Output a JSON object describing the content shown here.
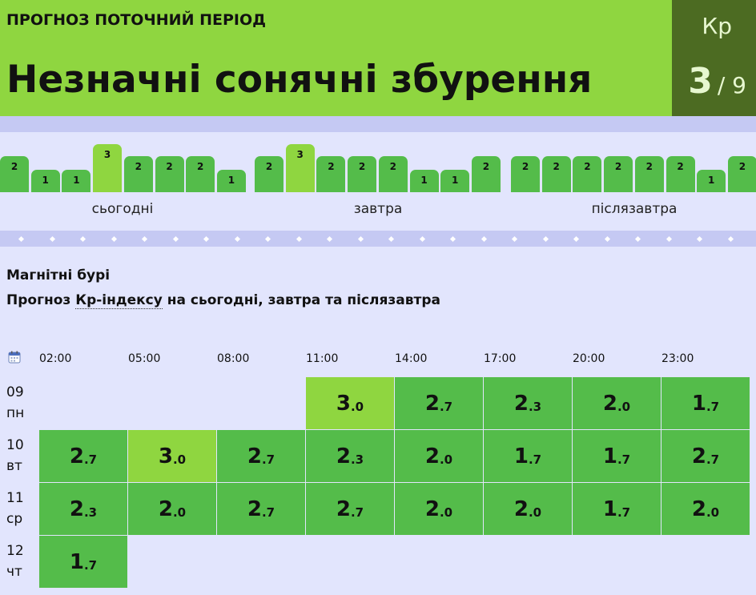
{
  "header": {
    "period_label": "ПРОГНОЗ ПОТОЧНИЙ ПЕРІОД",
    "headline": "Незначні сонячні збурення",
    "kp_label": "Кр",
    "kp_value": "3",
    "kp_max": "/ 9"
  },
  "colors": {
    "low": "#54bc4a",
    "mid": "#8fd640",
    "header_dark": "#4c6b22",
    "bg": "#e2e5fd",
    "band": "#c5c9f3"
  },
  "forecast_bars": [
    {
      "day": "сьогодні",
      "values": [
        "2",
        "1",
        "1",
        "3",
        "2",
        "2",
        "2",
        "1"
      ]
    },
    {
      "day": "завтра",
      "values": [
        "2",
        "3",
        "2",
        "2",
        "2",
        "1",
        "1",
        "2"
      ]
    },
    {
      "day": "післязавтра",
      "values": [
        "2",
        "2",
        "2",
        "2",
        "2",
        "2",
        "1",
        "2"
      ]
    }
  ],
  "section": {
    "title": "Магнітні бурі",
    "subtitle_prefix": "Прогноз ",
    "subtitle_abbr": "Кр-індексу",
    "subtitle_suffix": " на сьогодні, завтра та післязавтра"
  },
  "calendar_icon": "calendar-icon",
  "hours": [
    "02:00",
    "05:00",
    "08:00",
    "11:00",
    "14:00",
    "17:00",
    "20:00",
    "23:00"
  ],
  "rows": [
    {
      "date": "09",
      "weekday": "пн",
      "start": 3,
      "cells": [
        [
          "3",
          ".0"
        ],
        [
          "2",
          ".7"
        ],
        [
          "2",
          ".3"
        ],
        [
          "2",
          ".0"
        ],
        [
          "1",
          ".7"
        ]
      ]
    },
    {
      "date": "10",
      "weekday": "вт",
      "start": 0,
      "cells": [
        [
          "2",
          ".7"
        ],
        [
          "3",
          ".0"
        ],
        [
          "2",
          ".7"
        ],
        [
          "2",
          ".3"
        ],
        [
          "2",
          ".0"
        ],
        [
          "1",
          ".7"
        ],
        [
          "1",
          ".7"
        ],
        [
          "2",
          ".7"
        ]
      ]
    },
    {
      "date": "11",
      "weekday": "ср",
      "start": 0,
      "cells": [
        [
          "2",
          ".3"
        ],
        [
          "2",
          ".0"
        ],
        [
          "2",
          ".7"
        ],
        [
          "2",
          ".7"
        ],
        [
          "2",
          ".0"
        ],
        [
          "2",
          ".0"
        ],
        [
          "1",
          ".7"
        ],
        [
          "2",
          ".0"
        ]
      ]
    },
    {
      "date": "12",
      "weekday": "чт",
      "start": 0,
      "cells": [
        [
          "1",
          ".7"
        ]
      ]
    }
  ]
}
